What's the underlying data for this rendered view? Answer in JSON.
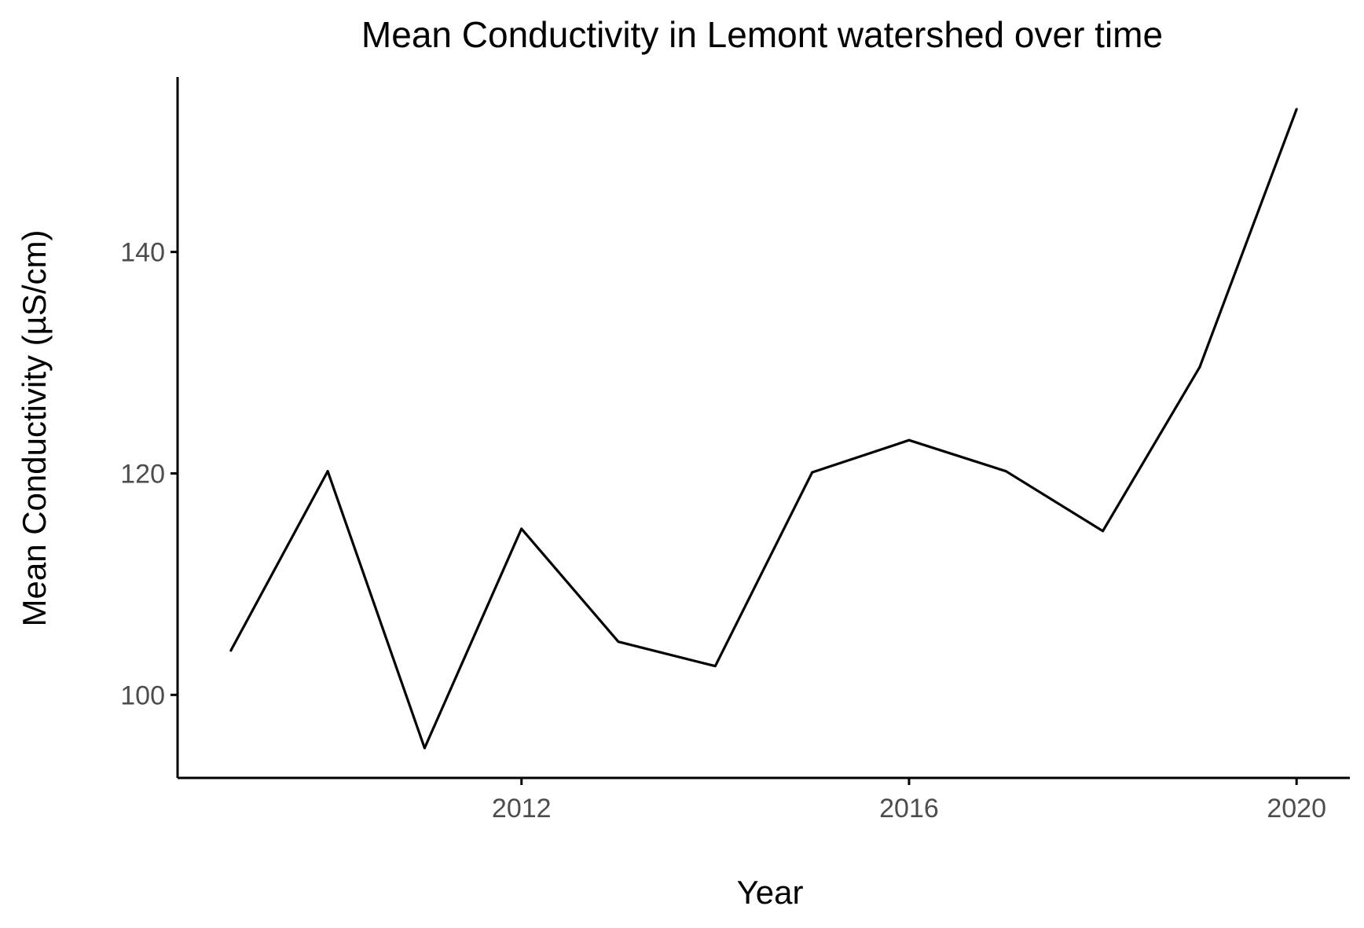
{
  "chart_data": {
    "type": "line",
    "title": "Mean Conductivity in Lemont watershed over time",
    "xlabel": "Year",
    "ylabel": "Mean Conductivity (µS/cm)",
    "x": [
      2009,
      2010,
      2011,
      2012,
      2013,
      2014,
      2015,
      2016,
      2017,
      2018,
      2019,
      2020
    ],
    "series": [
      {
        "values": [
          104.0,
          120.2,
          95.2,
          115.0,
          104.8,
          102.6,
          120.1,
          123.0,
          120.2,
          114.8,
          129.6,
          152.9
        ]
      }
    ],
    "xlim": [
      2008.45,
      2020.55
    ],
    "ylim": [
      92.5,
      155.8
    ],
    "xticks": [
      2012,
      2016,
      2020
    ],
    "yticks": [
      100,
      120,
      140
    ],
    "grid": false,
    "legend": "none",
    "line_color": "#000000"
  }
}
